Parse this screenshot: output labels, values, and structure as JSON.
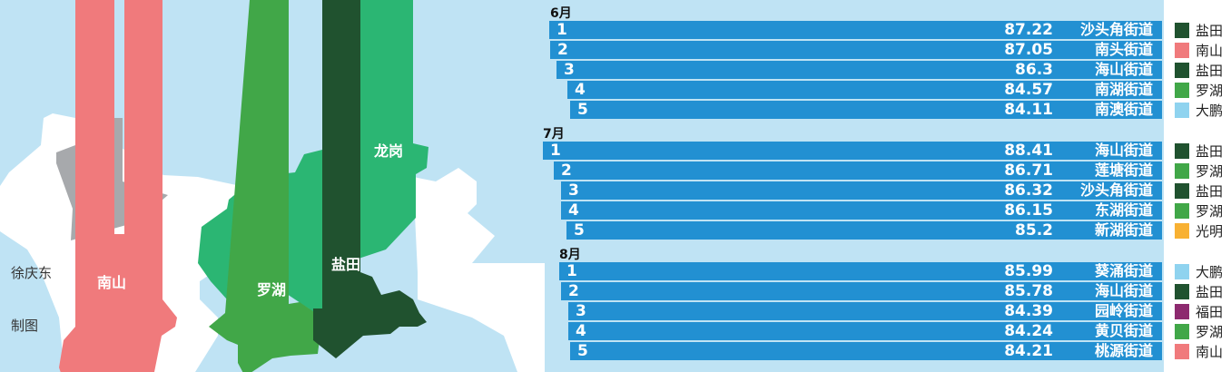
{
  "map": {
    "labels": {
      "nanshan": "南山",
      "luohu": "罗湖",
      "yantian": "盐田",
      "longgang": "龙岗"
    },
    "credit": {
      "author": "徐庆东",
      "role": "制图"
    },
    "colors": {
      "nanshan": "#f07a7c",
      "luohu": "#41a748",
      "yantian": "#20522f",
      "longgang": "#2bb673",
      "gray": "#a7a9ac",
      "sea": "#bfe3f4",
      "land": "#ffffff"
    }
  },
  "bar_color": "#2290d2",
  "district_colors": {
    "盐田": "#20522f",
    "南山": "#f07a7c",
    "罗湖": "#41a748",
    "大鹏": "#8fd3ef",
    "光明": "#f8b133",
    "福田": "#8d2a6f"
  },
  "months": [
    {
      "label": "6月",
      "rows": [
        {
          "rank": "1",
          "value": "87.22",
          "street": "沙头角街道",
          "district": "盐田"
        },
        {
          "rank": "2",
          "value": "87.05",
          "street": "南头街道",
          "district": "南山"
        },
        {
          "rank": "3",
          "value": "86.3",
          "street": "海山街道",
          "district": "盐田"
        },
        {
          "rank": "4",
          "value": "84.57",
          "street": "南湖街道",
          "district": "罗湖"
        },
        {
          "rank": "5",
          "value": "84.11",
          "street": "南澳街道",
          "district": "大鹏"
        }
      ]
    },
    {
      "label": "7月",
      "rows": [
        {
          "rank": "1",
          "value": "88.41",
          "street": "海山街道",
          "district": "盐田"
        },
        {
          "rank": "2",
          "value": "86.71",
          "street": "莲塘街道",
          "district": "罗湖"
        },
        {
          "rank": "3",
          "value": "86.32",
          "street": "沙头角街道",
          "district": "盐田"
        },
        {
          "rank": "4",
          "value": "86.15",
          "street": "东湖街道",
          "district": "罗湖"
        },
        {
          "rank": "5",
          "value": "85.2",
          "street": "新湖街道",
          "district": "光明"
        }
      ]
    },
    {
      "label": "8月",
      "rows": [
        {
          "rank": "1",
          "value": "85.99",
          "street": "葵涌街道",
          "district": "大鹏"
        },
        {
          "rank": "2",
          "value": "85.78",
          "street": "海山街道",
          "district": "盐田"
        },
        {
          "rank": "3",
          "value": "84.39",
          "street": "园岭街道",
          "district": "福田"
        },
        {
          "rank": "4",
          "value": "84.24",
          "street": "黄贝街道",
          "district": "罗湖"
        },
        {
          "rank": "5",
          "value": "84.21",
          "street": "桃源街道",
          "district": "南山"
        }
      ]
    }
  ]
}
